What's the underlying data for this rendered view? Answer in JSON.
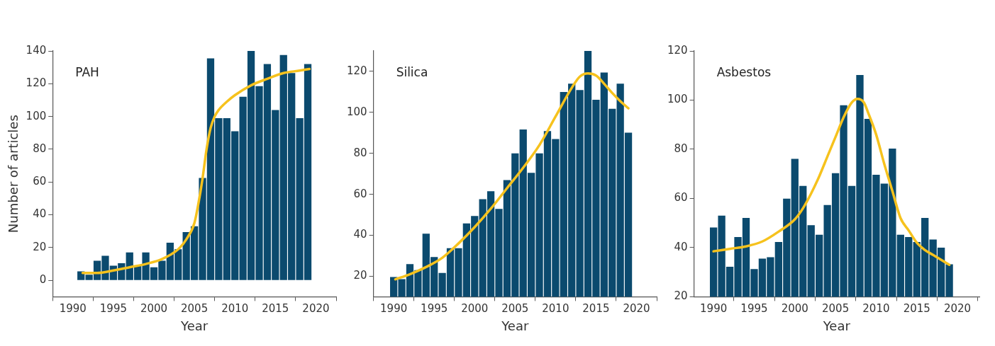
{
  "chart_data": [
    {
      "type": "bar",
      "xlabel": "Year",
      "ylabel": "Number of articles",
      "annotations": [
        "PAH"
      ],
      "x": [
        1991,
        1992,
        1993,
        1994,
        1995,
        1996,
        1997,
        1998,
        1999,
        2000,
        2001,
        2002,
        2003,
        2004,
        2005,
        2006,
        2007,
        2008,
        2009,
        2010,
        2011,
        2012,
        2013,
        2014,
        2015,
        2016,
        2017,
        2018,
        2019
      ],
      "series": [
        {
          "color": "#0b4a6e",
          "values": [
            5.5,
            3.5,
            12,
            15,
            9,
            10.5,
            17,
            9,
            17,
            8,
            12,
            23,
            19,
            29.5,
            33,
            62.5,
            135.5,
            99,
            99,
            91,
            112,
            140,
            118.5,
            132,
            104,
            137.5,
            126.5,
            99,
            132
          ]
        },
        {
          "type": "line",
          "color": "#f6c21d",
          "x": [
            1991.2,
            1993,
            1995,
            1997,
            1999,
            2001,
            2003,
            2004,
            2005,
            2005.5,
            2006,
            2006.5,
            2007,
            2007.5,
            2008,
            2009,
            2010,
            2012,
            2014,
            2016,
            2018,
            2019.2
          ],
          "values": [
            4.5,
            4.5,
            6,
            8,
            10,
            13,
            19,
            25,
            35,
            47,
            62,
            80,
            93,
            100,
            104,
            109,
            113,
            119,
            123,
            126.5,
            128,
            129
          ]
        }
      ],
      "xlim": [
        1987.5,
        2022.5
      ],
      "xticks": [
        1990,
        1995,
        2000,
        2005,
        2010,
        2015,
        2020
      ],
      "ylim": [
        -10,
        140
      ],
      "yticks": [
        0,
        20,
        40,
        60,
        80,
        100,
        120,
        140
      ]
    },
    {
      "type": "bar",
      "xlabel": "Year",
      "annotations": [
        "Silica"
      ],
      "x": [
        1990,
        1991,
        1992,
        1993,
        1994,
        1995,
        1996,
        1997,
        1998,
        1999,
        2000,
        2001,
        2002,
        2003,
        2004,
        2005,
        2006,
        2007,
        2008,
        2009,
        2010,
        2011,
        2012,
        2013,
        2014,
        2015,
        2016,
        2017,
        2018,
        2019
      ],
      "series": [
        {
          "color": "#0b4a6e",
          "values": [
            19.6,
            18.6,
            25.9,
            23,
            40.8,
            29.4,
            21.6,
            33.7,
            33.7,
            45.8,
            49.4,
            57.6,
            61.5,
            52.9,
            67,
            80,
            91.7,
            70.5,
            80,
            90.9,
            87,
            110,
            114,
            110.9,
            130,
            106.2,
            119.5,
            101.8,
            114,
            90.1
          ]
        },
        {
          "type": "line",
          "color": "#f6c21d",
          "x": [
            1990.2,
            1992,
            1994,
            1996,
            1998,
            2000,
            2002,
            2004,
            2006,
            2008,
            2010,
            2012,
            2013,
            2014,
            2015,
            2016,
            2017,
            2018,
            2019
          ],
          "values": [
            18.5,
            21,
            24.5,
            29,
            36,
            44,
            53,
            63,
            73,
            84,
            98,
            112,
            117.5,
            119,
            118,
            114,
            109.5,
            105.5,
            102
          ]
        }
      ],
      "xlim": [
        1987.5,
        2022.5
      ],
      "xticks": [
        1990,
        1995,
        2000,
        2005,
        2010,
        2015,
        2020
      ],
      "ylim": [
        10,
        130
      ],
      "yticks": [
        20,
        40,
        60,
        80,
        100,
        120
      ]
    },
    {
      "type": "bar",
      "xlabel": "Year",
      "annotations": [
        "Asbestos"
      ],
      "x": [
        1990,
        1991,
        1992,
        1993,
        1994,
        1995,
        1996,
        1997,
        1998,
        1999,
        2000,
        2001,
        2002,
        2003,
        2004,
        2005,
        2006,
        2007,
        2008,
        2009,
        2010,
        2011,
        2012,
        2013,
        2014,
        2015,
        2016,
        2017,
        2018,
        2019
      ],
      "series": [
        {
          "color": "#0b4a6e",
          "values": [
            48.2,
            53,
            32.2,
            44.3,
            52.1,
            31.3,
            35.5,
            36.1,
            42.3,
            59.9,
            76.1,
            65.1,
            49.1,
            45.2,
            57.3,
            70.3,
            97.9,
            65.1,
            110.2,
            92.4,
            69.6,
            66,
            80.3,
            45.2,
            44.3,
            42.3,
            52.1,
            43.3,
            40,
            33.2
          ]
        },
        {
          "type": "line",
          "color": "#f6c21d",
          "x": [
            1990,
            1992,
            1994,
            1996,
            1998,
            2000,
            2001,
            2002,
            2003,
            2004,
            2005,
            2006,
            2007,
            2007.7,
            2008.5,
            2009,
            2010,
            2011,
            2012,
            2013,
            2014,
            2015,
            2016,
            2017,
            2018,
            2019
          ],
          "values": [
            38.5,
            39.5,
            40.5,
            42.5,
            46.5,
            51.5,
            56,
            62,
            69,
            77,
            85,
            93,
            99,
            100.5,
            99,
            95,
            86,
            74,
            63,
            52,
            47,
            42,
            39,
            37,
            35,
            33
          ]
        }
      ],
      "xlim": [
        1987.6,
        2022.7
      ],
      "xticks": [
        1990,
        1995,
        2000,
        2005,
        2010,
        2015,
        2020
      ],
      "ylim": [
        20,
        120
      ],
      "yticks": [
        20,
        40,
        60,
        80,
        100,
        120
      ]
    }
  ]
}
